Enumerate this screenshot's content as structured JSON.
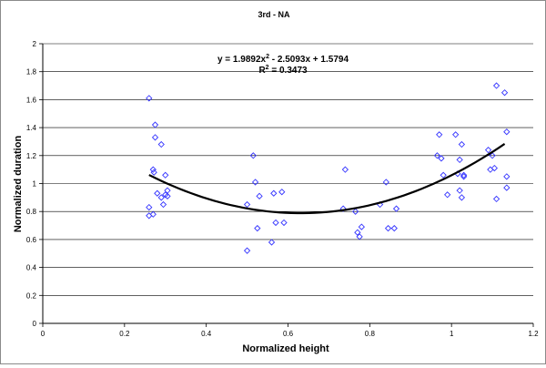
{
  "chart_data": {
    "type": "scatter",
    "title": "3rd - NA",
    "xlabel": "Normalized height",
    "ylabel": "Normalized duration",
    "xlim": [
      0,
      1.2
    ],
    "ylim": [
      0,
      2
    ],
    "xticks": [
      "0",
      "0.2",
      "0.4",
      "0.6",
      "0.8",
      "1",
      "1.2"
    ],
    "yticks": [
      "0",
      "0.2",
      "0.4",
      "0.6",
      "0.8",
      "1",
      "1.2",
      "1.4",
      "1.6",
      "1.8",
      "2"
    ],
    "grid": "horizontal",
    "marker_color": "#3333ff",
    "trend_color": "#000000",
    "trendline": {
      "type": "polynomial",
      "coefficients": [
        1.9892,
        -2.5093,
        1.5794
      ],
      "x_range": [
        0.26,
        1.13
      ],
      "equation_prefix": "y = 1.9892x",
      "equation_exponent": "2",
      "equation_suffix": " - 2.5093x + 1.5794",
      "r2_prefix": "R",
      "r2_exponent": "2",
      "r2_suffix": " = 0.3473"
    },
    "points": [
      [
        0.26,
        1.61
      ],
      [
        0.26,
        0.83
      ],
      [
        0.26,
        0.77
      ],
      [
        0.27,
        0.78
      ],
      [
        0.275,
        1.42
      ],
      [
        0.275,
        1.33
      ],
      [
        0.27,
        1.1
      ],
      [
        0.272,
        1.08
      ],
      [
        0.28,
        0.93
      ],
      [
        0.29,
        1.28
      ],
      [
        0.29,
        0.9
      ],
      [
        0.295,
        0.85
      ],
      [
        0.3,
        1.06
      ],
      [
        0.3,
        0.92
      ],
      [
        0.305,
        0.95
      ],
      [
        0.305,
        0.91
      ],
      [
        0.5,
        0.52
      ],
      [
        0.5,
        0.85
      ],
      [
        0.515,
        1.2
      ],
      [
        0.52,
        1.01
      ],
      [
        0.525,
        0.68
      ],
      [
        0.53,
        0.91
      ],
      [
        0.56,
        0.58
      ],
      [
        0.565,
        0.93
      ],
      [
        0.57,
        0.72
      ],
      [
        0.585,
        0.94
      ],
      [
        0.59,
        0.72
      ],
      [
        0.735,
        0.82
      ],
      [
        0.74,
        1.1
      ],
      [
        0.765,
        0.8
      ],
      [
        0.77,
        0.65
      ],
      [
        0.775,
        0.62
      ],
      [
        0.78,
        0.69
      ],
      [
        0.825,
        0.85
      ],
      [
        0.84,
        1.01
      ],
      [
        0.845,
        0.68
      ],
      [
        0.86,
        0.68
      ],
      [
        0.865,
        0.82
      ],
      [
        0.965,
        1.2
      ],
      [
        0.97,
        1.35
      ],
      [
        0.975,
        1.18
      ],
      [
        0.98,
        1.06
      ],
      [
        0.99,
        0.92
      ],
      [
        1.01,
        1.35
      ],
      [
        1.015,
        1.07
      ],
      [
        1.02,
        1.17
      ],
      [
        1.02,
        0.95
      ],
      [
        1.025,
        1.28
      ],
      [
        1.025,
        0.9
      ],
      [
        1.03,
        1.05
      ],
      [
        1.03,
        1.06
      ],
      [
        1.09,
        1.24
      ],
      [
        1.095,
        1.1
      ],
      [
        1.1,
        1.2
      ],
      [
        1.105,
        1.11
      ],
      [
        1.11,
        0.89
      ],
      [
        1.11,
        1.7
      ],
      [
        1.13,
        1.65
      ],
      [
        1.135,
        1.37
      ],
      [
        1.135,
        1.05
      ],
      [
        1.135,
        0.97
      ]
    ]
  }
}
